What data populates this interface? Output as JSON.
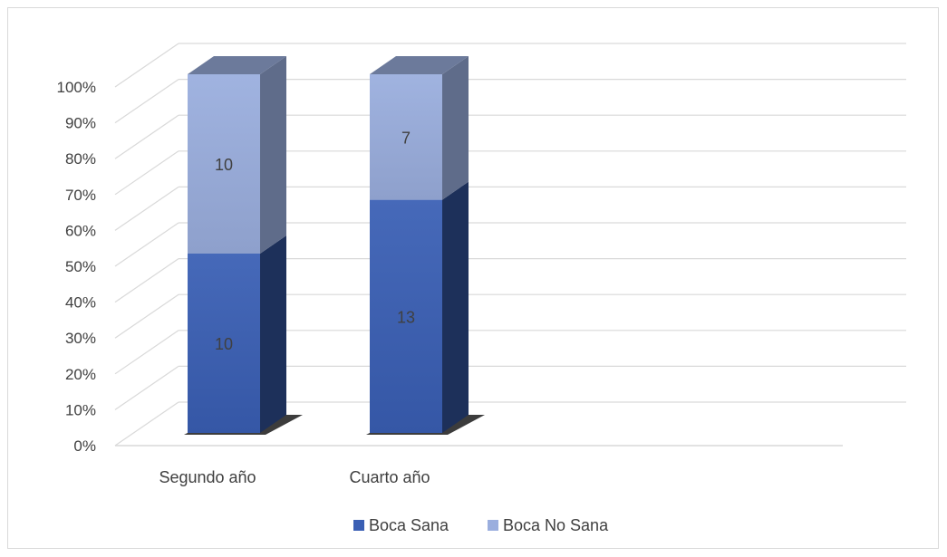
{
  "chart_data": {
    "type": "bar",
    "stacked": "percent",
    "three_d": true,
    "categories": [
      "Segundo año",
      "Cuarto año"
    ],
    "series": [
      {
        "name": "Boca Sana",
        "values": [
          10,
          13
        ],
        "color": "#3a5fb4"
      },
      {
        "name": "Boca No Sana",
        "values": [
          10,
          7
        ],
        "color": "#9aaede"
      }
    ],
    "y_ticks": [
      "0%",
      "10%",
      "20%",
      "30%",
      "40%",
      "50%",
      "60%",
      "70%",
      "80%",
      "90%",
      "100%"
    ],
    "ylim": [
      0,
      100
    ],
    "grid": true,
    "legend_position": "bottom",
    "title": "",
    "xlabel": "",
    "ylabel": ""
  }
}
